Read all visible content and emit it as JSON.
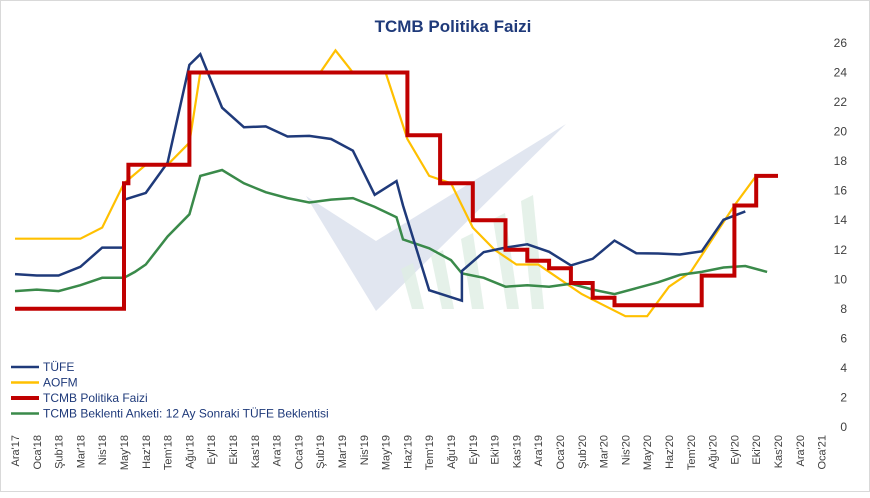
{
  "chart_data": {
    "type": "line",
    "title": "TCMB Politika Faizi",
    "xlabel": "",
    "ylabel": "",
    "ylim": [
      0,
      26
    ],
    "y_ticks": [
      0,
      2,
      4,
      6,
      8,
      10,
      12,
      14,
      16,
      18,
      20,
      22,
      24,
      26
    ],
    "y_axis_side": "right",
    "grid": false,
    "legend_position": "bottom-left",
    "categories": [
      "Ara'17",
      "Oca'18",
      "Şub'18",
      "Mar'18",
      "Nis'18",
      "May'18",
      "Haz'18",
      "Tem'18",
      "Ağu'18",
      "Eyl'18",
      "Eki'18",
      "Kas'18",
      "Ara'18",
      "Oca'19",
      "Şub'19",
      "Mar'19",
      "Nis'19",
      "May'19",
      "Haz'19",
      "Tem'19",
      "Ağu'19",
      "Eyl'19",
      "Eki'19",
      "Kas'19",
      "Ara'19",
      "Oca'20",
      "Şub'20",
      "Mar'20",
      "Nis'20",
      "May'20",
      "Haz'20",
      "Tem'20",
      "Ağu'20",
      "Eyl'20",
      "Eki'20",
      "Kas'20",
      "Ara'20",
      "Oca'21"
    ],
    "series": [
      {
        "name": "TÜFE",
        "color": "#1f3a7a",
        "points": [
          [
            0,
            10.35
          ],
          [
            1,
            10.26
          ],
          [
            2,
            10.26
          ],
          [
            3,
            10.85
          ],
          [
            4,
            12.15
          ],
          [
            5,
            12.15
          ],
          [
            5.01,
            15.39
          ],
          [
            6,
            15.85
          ],
          [
            7,
            17.9
          ],
          [
            8,
            24.52
          ],
          [
            8.5,
            25.24
          ],
          [
            9.5,
            21.62
          ],
          [
            10.5,
            20.3
          ],
          [
            11.5,
            20.35
          ],
          [
            12.5,
            19.67
          ],
          [
            13.5,
            19.71
          ],
          [
            14.5,
            19.5
          ],
          [
            15.5,
            18.71
          ],
          [
            16.5,
            15.72
          ],
          [
            17.5,
            16.65
          ],
          [
            17.8,
            15.0
          ],
          [
            19,
            9.26
          ],
          [
            20.5,
            8.55
          ],
          [
            20.5,
            10.56
          ],
          [
            21.5,
            11.84
          ],
          [
            22.5,
            12.15
          ],
          [
            23.5,
            12.37
          ],
          [
            24.5,
            11.86
          ],
          [
            25.5,
            10.94
          ],
          [
            26.5,
            11.39
          ],
          [
            27.5,
            12.62
          ],
          [
            28.5,
            11.77
          ],
          [
            29.5,
            11.75
          ],
          [
            30.5,
            11.68
          ],
          [
            31.5,
            11.89
          ],
          [
            32.5,
            14.03
          ],
          [
            33.5,
            14.6
          ]
        ]
      },
      {
        "name": "AOFM",
        "color": "#ffc000",
        "points": [
          [
            0,
            12.75
          ],
          [
            1,
            12.75
          ],
          [
            2,
            12.75
          ],
          [
            3,
            12.75
          ],
          [
            4,
            13.5
          ],
          [
            5,
            16.5
          ],
          [
            6,
            17.75
          ],
          [
            7,
            17.75
          ],
          [
            8,
            19.25
          ],
          [
            8.5,
            24.0
          ],
          [
            10,
            24.0
          ],
          [
            12,
            24.0
          ],
          [
            13,
            24.0
          ],
          [
            14,
            24.0
          ],
          [
            14.7,
            25.5
          ],
          [
            15.5,
            24.0
          ],
          [
            17,
            24.0
          ],
          [
            18,
            19.5
          ],
          [
            19,
            17.0
          ],
          [
            20,
            16.5
          ],
          [
            21,
            13.5
          ],
          [
            22,
            12.0
          ],
          [
            23,
            11.0
          ],
          [
            24,
            11.0
          ],
          [
            25,
            10.0
          ],
          [
            26,
            9.0
          ],
          [
            27,
            8.25
          ],
          [
            28,
            7.5
          ],
          [
            29,
            7.5
          ],
          [
            30,
            9.5
          ],
          [
            31,
            10.5
          ],
          [
            32,
            12.75
          ],
          [
            33,
            15.0
          ],
          [
            34,
            17.0
          ],
          [
            35,
            17.0
          ]
        ]
      },
      {
        "name": "TCMB Politika Faizi",
        "color": "#c00000",
        "points": [
          [
            0,
            8.0
          ],
          [
            5,
            8.0
          ],
          [
            5,
            16.5
          ],
          [
            5.2,
            16.5
          ],
          [
            5.2,
            17.75
          ],
          [
            8,
            17.75
          ],
          [
            8,
            24.0
          ],
          [
            18,
            24.0
          ],
          [
            18,
            19.75
          ],
          [
            19.5,
            19.75
          ],
          [
            19.5,
            16.5
          ],
          [
            21,
            16.5
          ],
          [
            21,
            14.0
          ],
          [
            22.5,
            14.0
          ],
          [
            22.5,
            12.0
          ],
          [
            23.5,
            12.0
          ],
          [
            23.5,
            11.25
          ],
          [
            24.5,
            11.25
          ],
          [
            24.5,
            10.75
          ],
          [
            25.5,
            10.75
          ],
          [
            25.5,
            9.75
          ],
          [
            26.5,
            9.75
          ],
          [
            26.5,
            8.75
          ],
          [
            27.5,
            8.75
          ],
          [
            27.5,
            8.25
          ],
          [
            31.5,
            8.25
          ],
          [
            31.5,
            10.25
          ],
          [
            33,
            10.25
          ],
          [
            33,
            15.0
          ],
          [
            34,
            15.0
          ],
          [
            34,
            17.0
          ],
          [
            35,
            17.0
          ]
        ]
      },
      {
        "name": "TCMB Beklenti Anketi: 12 Ay Sonraki TÜFE Beklentisi",
        "color": "#3a8a4a",
        "points": [
          [
            0,
            9.2
          ],
          [
            1,
            9.3
          ],
          [
            2,
            9.2
          ],
          [
            3,
            9.6
          ],
          [
            4,
            10.1
          ],
          [
            5,
            10.1
          ],
          [
            5.5,
            10.5
          ],
          [
            6,
            11.0
          ],
          [
            7,
            12.9
          ],
          [
            8,
            14.4
          ],
          [
            8.5,
            17.0
          ],
          [
            9.5,
            17.4
          ],
          [
            10.5,
            16.5
          ],
          [
            11.5,
            15.9
          ],
          [
            12.5,
            15.5
          ],
          [
            13.5,
            15.2
          ],
          [
            14.5,
            15.4
          ],
          [
            15.5,
            15.5
          ],
          [
            16.5,
            14.9
          ],
          [
            17.5,
            14.2
          ],
          [
            17.8,
            12.7
          ],
          [
            19,
            12.1
          ],
          [
            20,
            11.3
          ],
          [
            20.5,
            10.4
          ],
          [
            21.5,
            10.1
          ],
          [
            22.5,
            9.5
          ],
          [
            23.5,
            9.6
          ],
          [
            24.5,
            9.5
          ],
          [
            25.5,
            9.7
          ],
          [
            26.5,
            9.3
          ],
          [
            27.5,
            9.0
          ],
          [
            28.5,
            9.4
          ],
          [
            29.5,
            9.8
          ],
          [
            30.5,
            10.3
          ],
          [
            31.5,
            10.5
          ],
          [
            32.5,
            10.8
          ],
          [
            33.5,
            10.9
          ],
          [
            34.5,
            10.5
          ]
        ]
      }
    ]
  },
  "watermark_color": "#c9d1e3"
}
